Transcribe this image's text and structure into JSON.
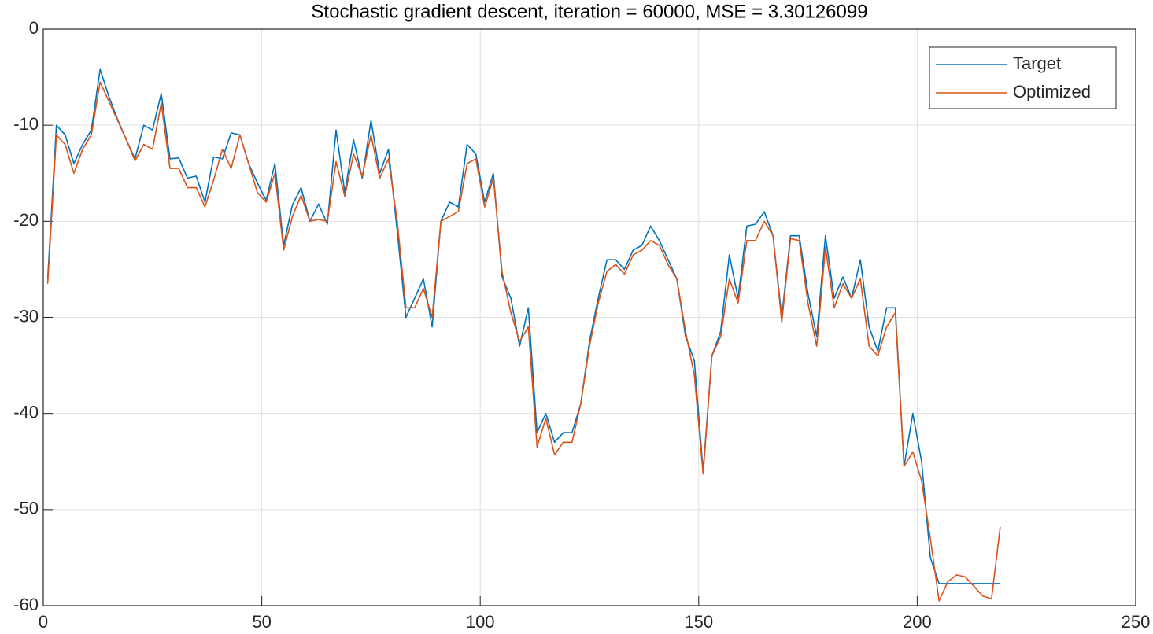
{
  "chart_data": {
    "type": "line",
    "title": "Stochastic gradient descent, iteration = 60000, MSE = 3.30126099",
    "x": [
      1,
      3,
      5,
      7,
      9,
      11,
      13,
      15,
      17,
      19,
      21,
      23,
      25,
      27,
      29,
      31,
      33,
      35,
      37,
      39,
      41,
      43,
      45,
      47,
      49,
      51,
      53,
      55,
      57,
      59,
      61,
      63,
      65,
      67,
      69,
      71,
      73,
      75,
      77,
      79,
      81,
      83,
      85,
      87,
      89,
      91,
      93,
      95,
      97,
      99,
      101,
      103,
      105,
      107,
      109,
      111,
      113,
      115,
      117,
      119,
      121,
      123,
      125,
      127,
      129,
      131,
      133,
      135,
      137,
      139,
      141,
      143,
      145,
      147,
      149,
      151,
      153,
      155,
      157,
      159,
      161,
      163,
      165,
      167,
      169,
      171,
      173,
      175,
      177,
      179,
      181,
      183,
      185,
      187,
      189,
      191,
      193,
      195,
      197,
      199,
      201,
      203,
      205,
      207,
      209,
      211,
      213,
      215,
      217,
      219
    ],
    "series": [
      {
        "name": "Target",
        "color": "#0072bd",
        "values": [
          -26,
          -10,
          -11,
          -14,
          -12,
          -10.5,
          -4.2,
          -7,
          -9.4,
          -11.5,
          -13.5,
          -10,
          -10.5,
          -6.7,
          -13.5,
          -13.4,
          -15.5,
          -15.3,
          -18,
          -13.3,
          -13.5,
          -10.8,
          -11,
          -14,
          -16,
          -17.8,
          -14,
          -22.5,
          -18.3,
          -16.5,
          -20,
          -18.2,
          -20.3,
          -10.5,
          -17,
          -11.5,
          -15.5,
          -9.5,
          -15,
          -12.5,
          -21,
          -30,
          -28,
          -26,
          -31,
          -20,
          -18,
          -18.5,
          -12,
          -13,
          -18,
          -15,
          -25.8,
          -28,
          -33,
          -29,
          -42,
          -40,
          -43,
          -42,
          -42,
          -39,
          -32.5,
          -28,
          -24,
          -24,
          -25,
          -23,
          -22.5,
          -20.5,
          -22,
          -24,
          -26,
          -32,
          -34.5,
          -46,
          -34,
          -31.5,
          -23.5,
          -28,
          -20.5,
          -20.3,
          -19,
          -21.5,
          -30,
          -21.5,
          -21.5,
          -27.5,
          -32,
          -21.5,
          -28,
          -25.8,
          -28,
          -24,
          -31,
          -33.5,
          -29,
          -29,
          -45.5,
          -40,
          -45,
          -55,
          -57.7,
          -57.7,
          -57.7,
          -57.7,
          -57.7,
          -57.7,
          -57.7,
          -57.7
        ]
      },
      {
        "name": "Optimized",
        "color": "#d95319",
        "values": [
          -26.5,
          -11,
          -12,
          -15,
          -12.5,
          -11,
          -5.5,
          -7.5,
          -9.5,
          -11.5,
          -13.7,
          -12,
          -12.5,
          -7.7,
          -14.5,
          -14.5,
          -16.5,
          -16.5,
          -18.5,
          -15.7,
          -12.5,
          -14.5,
          -11,
          -14,
          -17,
          -18,
          -15,
          -23,
          -19.5,
          -17.3,
          -20,
          -19.8,
          -20,
          -13.8,
          -17.4,
          -13,
          -15.3,
          -11,
          -15.5,
          -13.5,
          -20,
          -29,
          -29,
          -27,
          -30,
          -20,
          -19.5,
          -19,
          -14,
          -13.5,
          -18.5,
          -15.5,
          -25.3,
          -29.5,
          -32.5,
          -31,
          -43.5,
          -40.5,
          -44.3,
          -43,
          -43,
          -39,
          -33,
          -28.5,
          -25.2,
          -24.5,
          -25.5,
          -23.5,
          -23,
          -22,
          -22.5,
          -24.5,
          -26,
          -31.5,
          -36,
          -46.3,
          -34,
          -32,
          -26,
          -28.5,
          -22,
          -22,
          -20,
          -21.5,
          -30.5,
          -21.8,
          -22,
          -28.5,
          -33,
          -22.7,
          -29,
          -26.5,
          -28,
          -26,
          -33,
          -34,
          -31,
          -29.5,
          -45.5,
          -44,
          -47,
          -53,
          -59.5,
          -57.5,
          -56.8,
          -57,
          -58,
          -59,
          -59.3,
          -51.8
        ]
      }
    ],
    "xlim": [
      0,
      250
    ],
    "xticks": [
      0,
      50,
      100,
      150,
      200,
      250
    ],
    "ylim": [
      -60,
      0
    ],
    "yticks": [
      -60,
      -50,
      -40,
      -30,
      -20,
      -10,
      0
    ],
    "grid": true,
    "legend": "upper right"
  }
}
